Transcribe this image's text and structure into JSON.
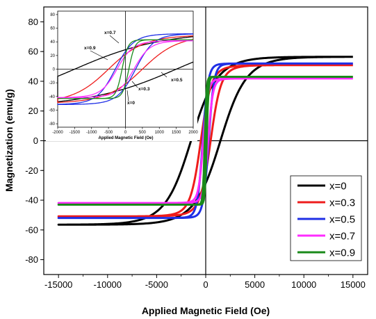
{
  "chart_data": [
    {
      "type": "line",
      "title": "",
      "xlabel": "Applied Magnetic Field (Oe)",
      "ylabel": "Magnetization (emu/g)",
      "xlim": [
        -16500,
        16500
      ],
      "ylim": [
        -90,
        90
      ],
      "x_ticks": [
        -15000,
        -10000,
        -5000,
        0,
        5000,
        10000,
        15000
      ],
      "y_ticks": [
        -80,
        -60,
        -40,
        -20,
        0,
        20,
        40,
        60,
        80
      ],
      "legend": {
        "placement": "bottom-right",
        "entries": [
          "x=0",
          "x=0.3",
          "x=0.5",
          "x=0.7",
          "x=0.9"
        ]
      },
      "series": [
        {
          "name": "x=0",
          "color": "#000000",
          "Ms": 74,
          "Hc": 1500,
          "Mr": 30,
          "H0": 3500
        },
        {
          "name": "x=0.3",
          "color": "#ee1c1c",
          "Ms": 52,
          "Hc": 500,
          "Mr": 22,
          "H0": 2500
        },
        {
          "name": "x=0.5",
          "color": "#1f2fe6",
          "Ms": 52,
          "Hc": 300,
          "Mr": 26,
          "H0": 2200
        },
        {
          "name": "x=0.7",
          "color": "#ff2cff",
          "Ms": 42,
          "Hc": 250,
          "Mr": 20,
          "H0": 1600
        },
        {
          "name": "x=0.9",
          "color": "#1a8a1a",
          "Ms": 43,
          "Hc": 100,
          "Mr": 22,
          "H0": 1400
        }
      ]
    },
    {
      "type": "line",
      "title": "",
      "xlabel": "Applied Magnetic Field (Oe)",
      "ylabel": "",
      "xlim": [
        -2000,
        2000
      ],
      "ylim": [
        -85,
        85
      ],
      "x_ticks": [
        -2000,
        -1500,
        -1000,
        -500,
        0,
        500,
        1000,
        1500,
        2000
      ],
      "y_ticks": [
        -80,
        -60,
        -40,
        -20,
        0,
        20,
        40,
        60,
        80
      ],
      "annotations": [
        "x=0.9",
        "x=0.7",
        "x=0.5",
        "x=0.3",
        "x=0"
      ]
    }
  ]
}
